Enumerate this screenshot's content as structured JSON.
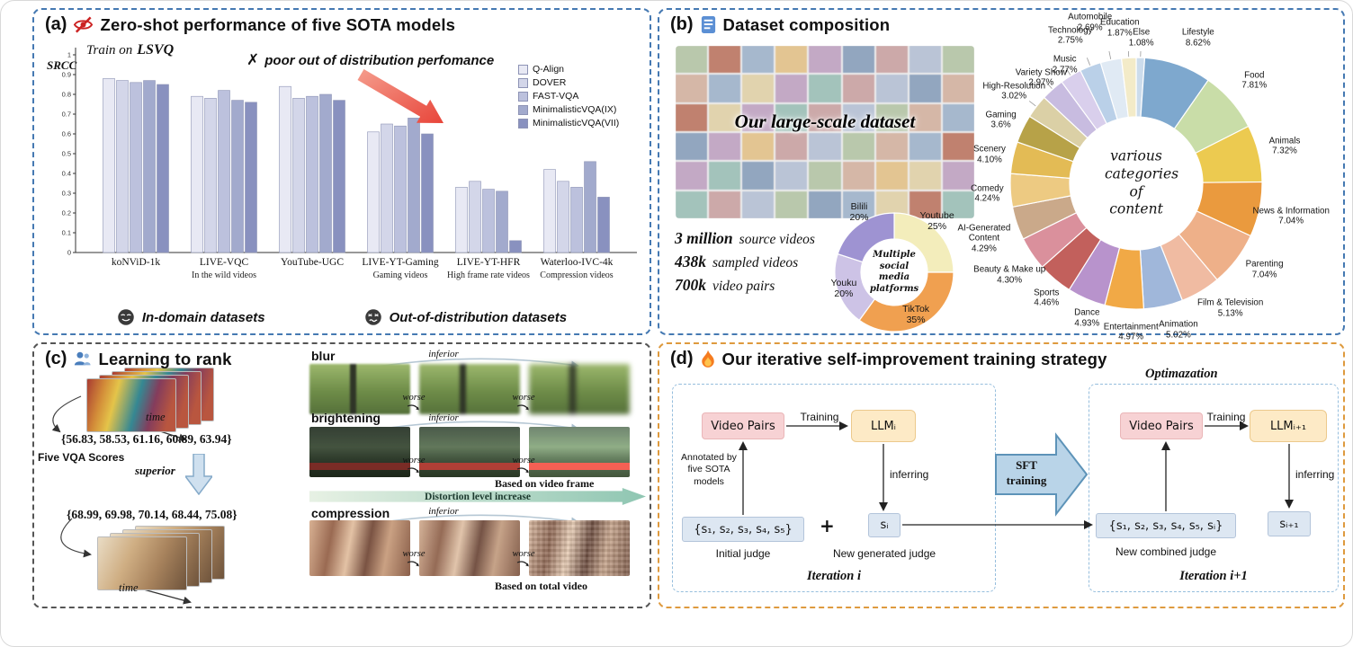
{
  "panels": {
    "a": {
      "label": "(a)",
      "title": "Zero-shot performance of five SOTA models",
      "train_prefix": "Train on",
      "train_dataset": "LSVQ",
      "ylabel": "SRCC",
      "cross": "✗",
      "warning": "poor out of distribution perfomance",
      "in_label": "In-domain datasets",
      "out_label": "Out-of-distribution datasets"
    },
    "b": {
      "label": "(b)",
      "title": "Dataset composition",
      "collage_caption": "Our large-scale dataset",
      "stats": [
        {
          "value": "3 million",
          "desc": "source videos"
        },
        {
          "value": "438k",
          "desc": "sampled videos"
        },
        {
          "value": "700k",
          "desc": "video pairs"
        }
      ]
    },
    "c": {
      "label": "(c)",
      "title": "Learning to rank",
      "time_label": "time",
      "scores_top": "{56.83, 58.53, 61.16, 60.89, 63.94}",
      "scores_label": "Five VQA Scores",
      "superior": "superior",
      "scores_bottom": "{68.99, 69.98, 70.14, 68.44, 75.08}",
      "inferior": "inferior",
      "worse": "worse",
      "rows": [
        {
          "name": "blur"
        },
        {
          "name": "brightening",
          "caption": "Based on video frame"
        },
        {
          "name": "compression",
          "caption": "Based on total video"
        }
      ],
      "arrow_label": "Distortion level increase"
    },
    "d": {
      "label": "(d)",
      "title": "Our iterative self-improvement training strategy",
      "sft": "SFT training",
      "left": {
        "video_pairs": "Video Pairs",
        "training": "Training",
        "llm": "LLMᵢ",
        "annotated": "Annotated by five SOTA models",
        "scores": "{s₁, s₂, s₃, s₄, s₅}",
        "plus": "+",
        "si": "sᵢ",
        "inferring": "inferring",
        "initial_judge": "Initial judge",
        "new_generated": "New generated judge",
        "iteration": "Iteration i"
      },
      "right": {
        "optimization": "Optimazation",
        "video_pairs": "Video Pairs",
        "training": "Training",
        "llm": "LLMᵢ₊₁",
        "scores": "{s₁, s₂, s₃, s₄, s₅, sᵢ}",
        "si": "sᵢ₊₁",
        "inferring": "inferring",
        "new_combined": "New combined judge",
        "iteration": "Iteration i+1"
      }
    }
  },
  "chart_data": [
    {
      "type": "bar",
      "title": "Zero-shot performance of five SOTA models",
      "xlabel": "",
      "ylabel": "SRCC",
      "ylim": [
        0,
        1
      ],
      "grid": false,
      "legend_position": "top-right",
      "categories": [
        "koNViD-1k",
        "LIVE-VQC",
        "YouTube-UGC",
        "LIVE-YT-Gaming",
        "LIVE-YT-HFR",
        "Waterloo-IVC-4k"
      ],
      "category_notes": [
        {
          "text": "In the wild videos",
          "span": [
            0,
            2
          ]
        },
        {
          "text": "Gaming videos",
          "span": [
            3,
            3
          ]
        },
        {
          "text": "High frame rate videos",
          "span": [
            4,
            4
          ]
        },
        {
          "text": "Compression videos",
          "span": [
            5,
            5
          ]
        }
      ],
      "series": [
        {
          "name": "Q-Align",
          "color": "#e8e9f4",
          "values": [
            0.88,
            0.79,
            0.84,
            0.61,
            0.33,
            0.42
          ]
        },
        {
          "name": "DOVER",
          "color": "#d3d6e9",
          "values": [
            0.87,
            0.78,
            0.78,
            0.65,
            0.36,
            0.36
          ]
        },
        {
          "name": "FAST-VQA",
          "color": "#bcc1dd",
          "values": [
            0.86,
            0.82,
            0.79,
            0.64,
            0.32,
            0.33
          ]
        },
        {
          "name": "MinimalisticVQA(IX)",
          "color": "#a2aacd",
          "values": [
            0.87,
            0.77,
            0.8,
            0.68,
            0.31,
            0.46
          ]
        },
        {
          "name": "MinimalisticVQA(VII)",
          "color": "#8991bf",
          "values": [
            0.85,
            0.76,
            0.77,
            0.6,
            0.06,
            0.28
          ]
        }
      ]
    },
    {
      "type": "pie",
      "subtype": "donut",
      "title": "various categories of content",
      "slices": [
        {
          "label": "Else",
          "value": 1.08,
          "pct": "1.08%",
          "color": "#ccdcec",
          "la": 2,
          "lr": 22
        },
        {
          "label": "Lifestyle",
          "value": 8.62,
          "pct": "8.62%",
          "color": "#7ea8ce",
          "la": 23,
          "lr": 36
        },
        {
          "label": "Food",
          "value": 7.81,
          "pct": "7.81%",
          "color": "#c9dda8",
          "la": 49,
          "lr": 34
        },
        {
          "label": "Animals",
          "value": 7.32,
          "pct": "7.32%",
          "color": "#ecca50",
          "la": 76,
          "lr": 30
        },
        {
          "label": "News & Information",
          "value": 7.04,
          "pct": "7.04%",
          "color": "#ea9a3e",
          "la": 102,
          "lr": 36
        },
        {
          "label": "Parenting",
          "value": 7.04,
          "pct": "7.04%",
          "color": "#eeb089",
          "la": 124,
          "lr": 32
        },
        {
          "label": "Film & Television",
          "value": 5.13,
          "pct": "5.13%",
          "color": "#f0bba2",
          "la": 143,
          "lr": 34
        },
        {
          "label": "Animation",
          "value": 5.02,
          "pct": "5.02%",
          "color": "#a0b7da",
          "la": 164,
          "lr": 30
        },
        {
          "label": "Entertainment",
          "value": 4.97,
          "pct": "4.97%",
          "color": "#f1a946",
          "la": 182,
          "lr": 26
        },
        {
          "label": "Dance",
          "value": 4.93,
          "pct": "4.93%",
          "color": "#b893cc",
          "la": 200,
          "lr": 20
        },
        {
          "label": "Sports",
          "value": 4.46,
          "pct": "4.46%",
          "color": "#c2605c",
          "la": 218,
          "lr": 22
        },
        {
          "label": "Beauty & Make up",
          "value": 4.3,
          "pct": "4.30%",
          "color": "#da909c",
          "la": 234,
          "lr": 34
        },
        {
          "label": "AI-Generated Content",
          "value": 4.29,
          "pct": "4.29%",
          "color": "#caa98a",
          "la": 250,
          "lr": 40
        },
        {
          "label": "Comedy",
          "value": 4.24,
          "pct": "4.24%",
          "color": "#edca82",
          "la": 266,
          "lr": 26
        },
        {
          "label": "Scenery",
          "value": 4.1,
          "pct": "4.10%",
          "color": "#e3bb55",
          "la": 281,
          "lr": 26
        },
        {
          "label": "Gaming",
          "value": 3.6,
          "pct": "3.6%",
          "color": "#b7a248",
          "la": 295,
          "lr": 26
        },
        {
          "label": "High-Resolution",
          "value": 3.02,
          "pct": "3.02%",
          "color": "#dbd0a6",
          "la": 307,
          "lr": 30
        },
        {
          "label": "Variety Show",
          "value": 2.97,
          "pct": "2.97%",
          "color": "#c8bce0",
          "la": 318,
          "lr": 18
        },
        {
          "label": "Music",
          "value": 2.77,
          "pct": "2.77%",
          "color": "#d9cfec",
          "la": 329,
          "lr": 14
        },
        {
          "label": "Technology",
          "value": 2.75,
          "pct": "2.75%",
          "color": "#bad0e8",
          "la": 336,
          "lr": 40
        },
        {
          "label": "Automobile",
          "value": 2.69,
          "pct": "2.69%",
          "color": "#e0eaf4",
          "la": 344,
          "lr": 46
        },
        {
          "label": "Education",
          "value": 1.87,
          "pct": "1.87%",
          "color": "#f3ebc8",
          "la": 354,
          "lr": 34
        }
      ]
    },
    {
      "type": "pie",
      "subtype": "donut",
      "title": "Multiple social media platforms",
      "slices": [
        {
          "label": "Youtube",
          "value": 25,
          "pct": "25%",
          "color": "#f3edbb",
          "la": 40,
          "lr": 8
        },
        {
          "label": "TikTok",
          "value": 35,
          "pct": "35%",
          "color": "#f0a050",
          "la": 153,
          "lr": -13
        },
        {
          "label": "Youku",
          "value": 20,
          "pct": "20%",
          "color": "#cdc3e6",
          "la": 252,
          "lr": -7
        },
        {
          "label": "Bilili",
          "value": 20,
          "pct": "20%",
          "color": "#9e93d2",
          "la": 330,
          "lr": 12
        }
      ]
    }
  ]
}
